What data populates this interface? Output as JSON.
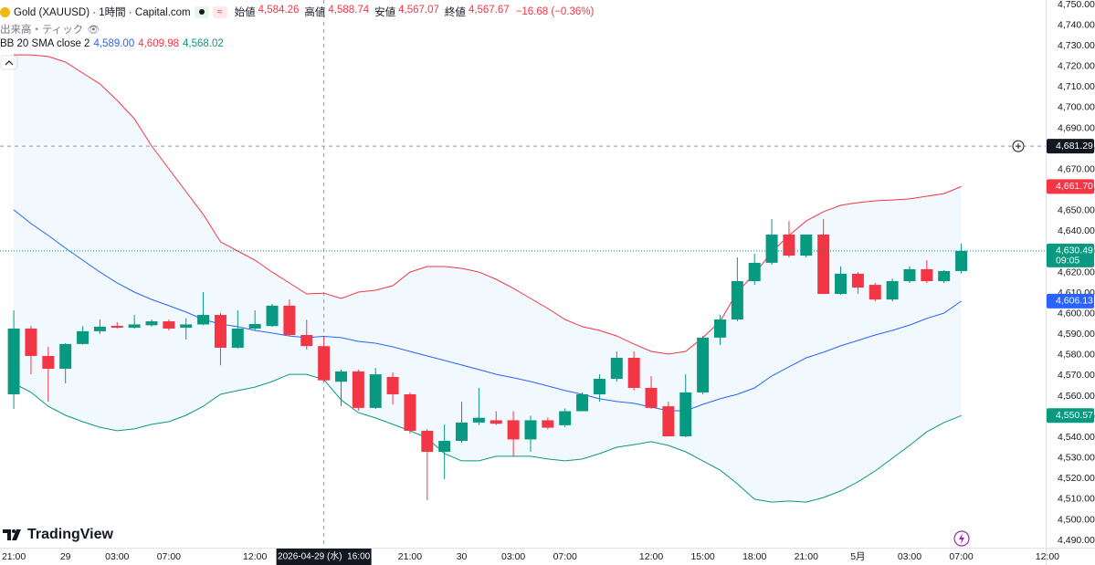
{
  "chart_data": {
    "type": "candlestick",
    "title": "Gold (XAUUSD) · 1時間 · Capital.com",
    "ohlc_legend": [
      {
        "label": "始値",
        "value": "4,584.26"
      },
      {
        "label": "高値",
        "value": "4,588.74"
      },
      {
        "label": "安値",
        "value": "4,567.07"
      },
      {
        "label": "終値",
        "value": "4,567.67"
      }
    ],
    "change": "−16.68 (−0.36%)",
    "volume_label": "出来高・ティック",
    "indicator": {
      "name": "BB 20 SMA close 2",
      "values": [
        "4,589.00",
        "4,609.98",
        "4,568.02"
      ]
    },
    "brand": "TradingView",
    "up_color": "#089981",
    "down_color": "#f23645",
    "band_fill": "rgba(33,150,243,0.06)",
    "grid": false,
    "x": [
      0,
      1,
      2,
      3,
      4,
      5,
      6,
      7,
      8,
      9,
      10,
      11,
      12,
      13,
      14,
      15,
      16,
      17,
      18,
      19,
      20,
      21,
      22,
      23,
      24,
      25,
      26,
      27,
      28,
      29,
      30,
      31,
      32,
      33,
      34,
      35,
      36,
      37,
      38,
      39,
      40,
      41,
      42,
      43,
      44,
      45,
      46,
      47,
      48,
      49,
      50,
      51,
      52,
      53,
      54,
      55
    ],
    "open": [
      4560.9,
      4592.8,
      4579.5,
      4573.3,
      4585.3,
      4591.5,
      4594.1,
      4593.2,
      4594.4,
      4596.3,
      4593.2,
      4594.8,
      4599.4,
      4583.5,
      4592.8,
      4594.0,
      4603.9,
      4589.7,
      4584.26,
      4567.0,
      4572.0,
      4554.3,
      4569.3,
      4560.9,
      4543.2,
      4533.0,
      4538.3,
      4547.2,
      4548.3,
      4548.3,
      4539.0,
      4548.3,
      4545.9,
      4552.7,
      4560.9,
      4568.4,
      4578.6,
      4564.0,
      4555.1,
      4540.5,
      4561.8,
      4588.4,
      4597.2,
      4615.8,
      4624.7,
      4638.4,
      4628.2,
      4638.4,
      4609.6,
      4619.4,
      4614.0,
      4606.9,
      4615.8,
      4621.6,
      4615.8,
      4620.7
    ],
    "high": [
      4601.6,
      4594.1,
      4584.0,
      4585.7,
      4594.0,
      4597.2,
      4595.9,
      4599.4,
      4597.2,
      4597.2,
      4597.8,
      4610.5,
      4600.3,
      4601.6,
      4601.6,
      4604.7,
      4607.0,
      4597.0,
      4588.74,
      4572.9,
      4572.9,
      4573.7,
      4571.5,
      4561.8,
      4544.0,
      4546.3,
      4557.3,
      4564.0,
      4552.7,
      4552.7,
      4550.5,
      4549.6,
      4554.0,
      4561.8,
      4570.6,
      4581.7,
      4581.7,
      4569.7,
      4557.3,
      4570.6,
      4589.2,
      4599.4,
      4627.3,
      4629.1,
      4645.9,
      4645.0,
      4638.4,
      4645.9,
      4623.0,
      4620.3,
      4614.9,
      4617.1,
      4623.0,
      4626.0,
      4621.1,
      4634.0
    ],
    "low": [
      4553.8,
      4570.6,
      4557.3,
      4566.2,
      4585.0,
      4590.2,
      4592.8,
      4592.8,
      4593.7,
      4591.9,
      4587.5,
      4594.4,
      4575.0,
      4583.0,
      4592.0,
      4593.7,
      4589.2,
      4582.6,
      4567.07,
      4555.1,
      4553.0,
      4553.8,
      4556.0,
      4541.9,
      4509.5,
      4519.7,
      4537.4,
      4546.0,
      4546.0,
      4530.8,
      4533.0,
      4543.9,
      4545.0,
      4552.7,
      4557.3,
      4567.0,
      4562.7,
      4553.8,
      4540.5,
      4540.1,
      4560.9,
      4584.8,
      4596.3,
      4614.0,
      4623.8,
      4627.3,
      4627.3,
      4609.6,
      4609.2,
      4609.6,
      4606.0,
      4606.0,
      4614.9,
      4614.9,
      4614.9,
      4619.5
    ],
    "close": [
      4592.8,
      4579.5,
      4573.3,
      4585.3,
      4591.5,
      4593.7,
      4593.2,
      4594.8,
      4596.3,
      4592.8,
      4594.8,
      4599.4,
      4583.5,
      4592.8,
      4595.0,
      4603.9,
      4589.7,
      4584.3,
      4567.67,
      4572.0,
      4554.3,
      4570.6,
      4560.9,
      4543.2,
      4533.0,
      4538.3,
      4547.2,
      4549.5,
      4546.6,
      4539.0,
      4548.3,
      4544.7,
      4552.7,
      4560.9,
      4568.4,
      4578.6,
      4564.0,
      4554.3,
      4540.5,
      4561.8,
      4588.4,
      4597.2,
      4615.8,
      4624.7,
      4638.4,
      4628.2,
      4638.4,
      4609.6,
      4619.4,
      4612.7,
      4606.9,
      4615.8,
      4621.6,
      4615.8,
      4620.7,
      4630.49
    ],
    "series": [
      {
        "name": "Upper",
        "color": "#f23645",
        "values": [
          4725.6,
          4725.6,
          4724.8,
          4722.1,
          4716.8,
          4711.5,
          4703.5,
          4694.6,
          4681.4,
          4670.3,
          4659.2,
          4648.2,
          4634.9,
          4630.4,
          4626.0,
          4620.2,
          4614.9,
          4609.6,
          4609.98,
          4607.4,
          4610.5,
          4611.4,
          4613.6,
          4620.2,
          4622.9,
          4622.9,
          4622.0,
          4620.2,
          4616.7,
          4612.3,
          4607.4,
          4602.5,
          4597.2,
          4593.7,
          4591.9,
          4589.2,
          4585.3,
          4581.7,
          4580.4,
          4581.7,
          4588.4,
          4596.3,
          4610.5,
          4619.4,
          4630.0,
          4638.0,
          4645.0,
          4649.5,
          4652.6,
          4653.9,
          4654.8,
          4655.2,
          4655.7,
          4657.0,
          4658.3,
          4661.7
        ]
      },
      {
        "name": "Basis",
        "color": "#2962ff",
        "values": [
          4650.4,
          4643.7,
          4638.0,
          4631.8,
          4626.0,
          4620.2,
          4614.9,
          4610.5,
          4606.9,
          4603.9,
          4600.8,
          4597.2,
          4595.0,
          4593.7,
          4591.9,
          4590.6,
          4589.2,
          4588.4,
          4589.0,
          4588.4,
          4586.6,
          4585.7,
          4583.9,
          4581.7,
          4579.5,
          4577.3,
          4575.1,
          4572.9,
          4570.6,
          4568.9,
          4567.1,
          4564.9,
          4562.7,
          4560.9,
          4558.7,
          4557.4,
          4556.5,
          4554.7,
          4552.9,
          4552.9,
          4556.0,
          4558.7,
          4560.9,
          4564.0,
          4569.8,
          4574.2,
          4578.6,
          4581.3,
          4584.4,
          4587.0,
          4589.7,
          4591.9,
          4594.5,
          4597.7,
          4600.3,
          4606.13
        ]
      },
      {
        "name": "Lower",
        "color": "#089981",
        "values": [
          4566.2,
          4561.8,
          4555.1,
          4550.7,
          4547.6,
          4544.9,
          4543.2,
          4544.1,
          4546.3,
          4547.6,
          4550.7,
          4555.1,
          4560.9,
          4562.7,
          4564.4,
          4567.1,
          4570.6,
          4570.6,
          4568.02,
          4558.2,
          4552.0,
          4549.4,
          4546.3,
          4543.2,
          4539.6,
          4532.1,
          4528.6,
          4528.6,
          4530.8,
          4530.8,
          4530.8,
          4529.5,
          4528.6,
          4529.5,
          4532.1,
          4535.2,
          4536.5,
          4537.9,
          4536.1,
          4533.0,
          4528.6,
          4524.1,
          4517.5,
          4510.0,
          4508.6,
          4509.1,
          4508.6,
          4510.8,
          4514.0,
          4518.4,
          4523.7,
          4529.9,
          4536.1,
          4542.7,
          4547.2,
          4550.57
        ]
      }
    ],
    "xlim": [
      -0.8,
      59.9
    ],
    "xticks": [
      {
        "value": 0,
        "label": "21:00"
      },
      {
        "value": 3,
        "label": "29"
      },
      {
        "value": 6,
        "label": "03:00"
      },
      {
        "value": 9,
        "label": "07:00"
      },
      {
        "value": 14,
        "label": "12:00"
      },
      {
        "value": 23,
        "label": "21:00"
      },
      {
        "value": 26,
        "label": "30"
      },
      {
        "value": 29,
        "label": "03:00"
      },
      {
        "value": 32,
        "label": "07:00"
      },
      {
        "value": 37,
        "label": "12:00"
      },
      {
        "value": 40,
        "label": "15:00"
      },
      {
        "value": 43,
        "label": "18:00"
      },
      {
        "value": 46,
        "label": "21:00"
      },
      {
        "value": 49,
        "label": "5月"
      },
      {
        "value": 52,
        "label": "03:00"
      },
      {
        "value": 55,
        "label": "07:00"
      },
      {
        "value": 60,
        "label": "12:00"
      }
    ],
    "ylim": [
      4486.49,
      4752.21
    ],
    "yticks": [
      {
        "value": 4490,
        "label": "4,490.00"
      },
      {
        "value": 4500,
        "label": "4,500.00"
      },
      {
        "value": 4510,
        "label": "4,510.00"
      },
      {
        "value": 4520,
        "label": "4,520.00"
      },
      {
        "value": 4530,
        "label": "4,530.00"
      },
      {
        "value": 4540,
        "label": "4,540.00"
      },
      {
        "value": 4550,
        "label": "4,550.00"
      },
      {
        "value": 4560,
        "label": "4,560.00"
      },
      {
        "value": 4570,
        "label": "4,570.00"
      },
      {
        "value": 4580,
        "label": "4,580.00"
      },
      {
        "value": 4590,
        "label": "4,590.00"
      },
      {
        "value": 4600,
        "label": "4,600.00"
      },
      {
        "value": 4610,
        "label": "4,610.00"
      },
      {
        "value": 4620,
        "label": "4,620.00"
      },
      {
        "value": 4630,
        "label": "4,630.00"
      },
      {
        "value": 4640,
        "label": "4,640.00"
      },
      {
        "value": 4650,
        "label": "4,650.00"
      },
      {
        "value": 4660,
        "label": "4,660.00"
      },
      {
        "value": 4670,
        "label": "4,670.00"
      },
      {
        "value": 4680,
        "label": "4,680.00"
      },
      {
        "value": 4690,
        "label": "4,690.00"
      },
      {
        "value": 4700,
        "label": "4,700.00"
      },
      {
        "value": 4710,
        "label": "4,710.00"
      },
      {
        "value": 4720,
        "label": "4,720.00"
      },
      {
        "value": 4730,
        "label": "4,730.00"
      },
      {
        "value": 4740,
        "label": "4,740.00"
      },
      {
        "value": 4750,
        "label": "4,750.00"
      }
    ],
    "price_labels": [
      {
        "value": 4661.7,
        "label": "4,661.70",
        "color": "#f23645"
      },
      {
        "value": 4630.49,
        "label": "4,630.49",
        "color": "#089981",
        "sub": "09:05",
        "dotted_line": true
      },
      {
        "value": 4606.13,
        "label": "4,606.13",
        "color": "#2962ff"
      },
      {
        "value": 4550.57,
        "label": "4,550.57",
        "color": "#089981"
      }
    ],
    "crosshair_price": {
      "value": 4681.29,
      "label": "4,681.29"
    },
    "crosshair_time": "2026-04-29 (水)  16:00"
  }
}
